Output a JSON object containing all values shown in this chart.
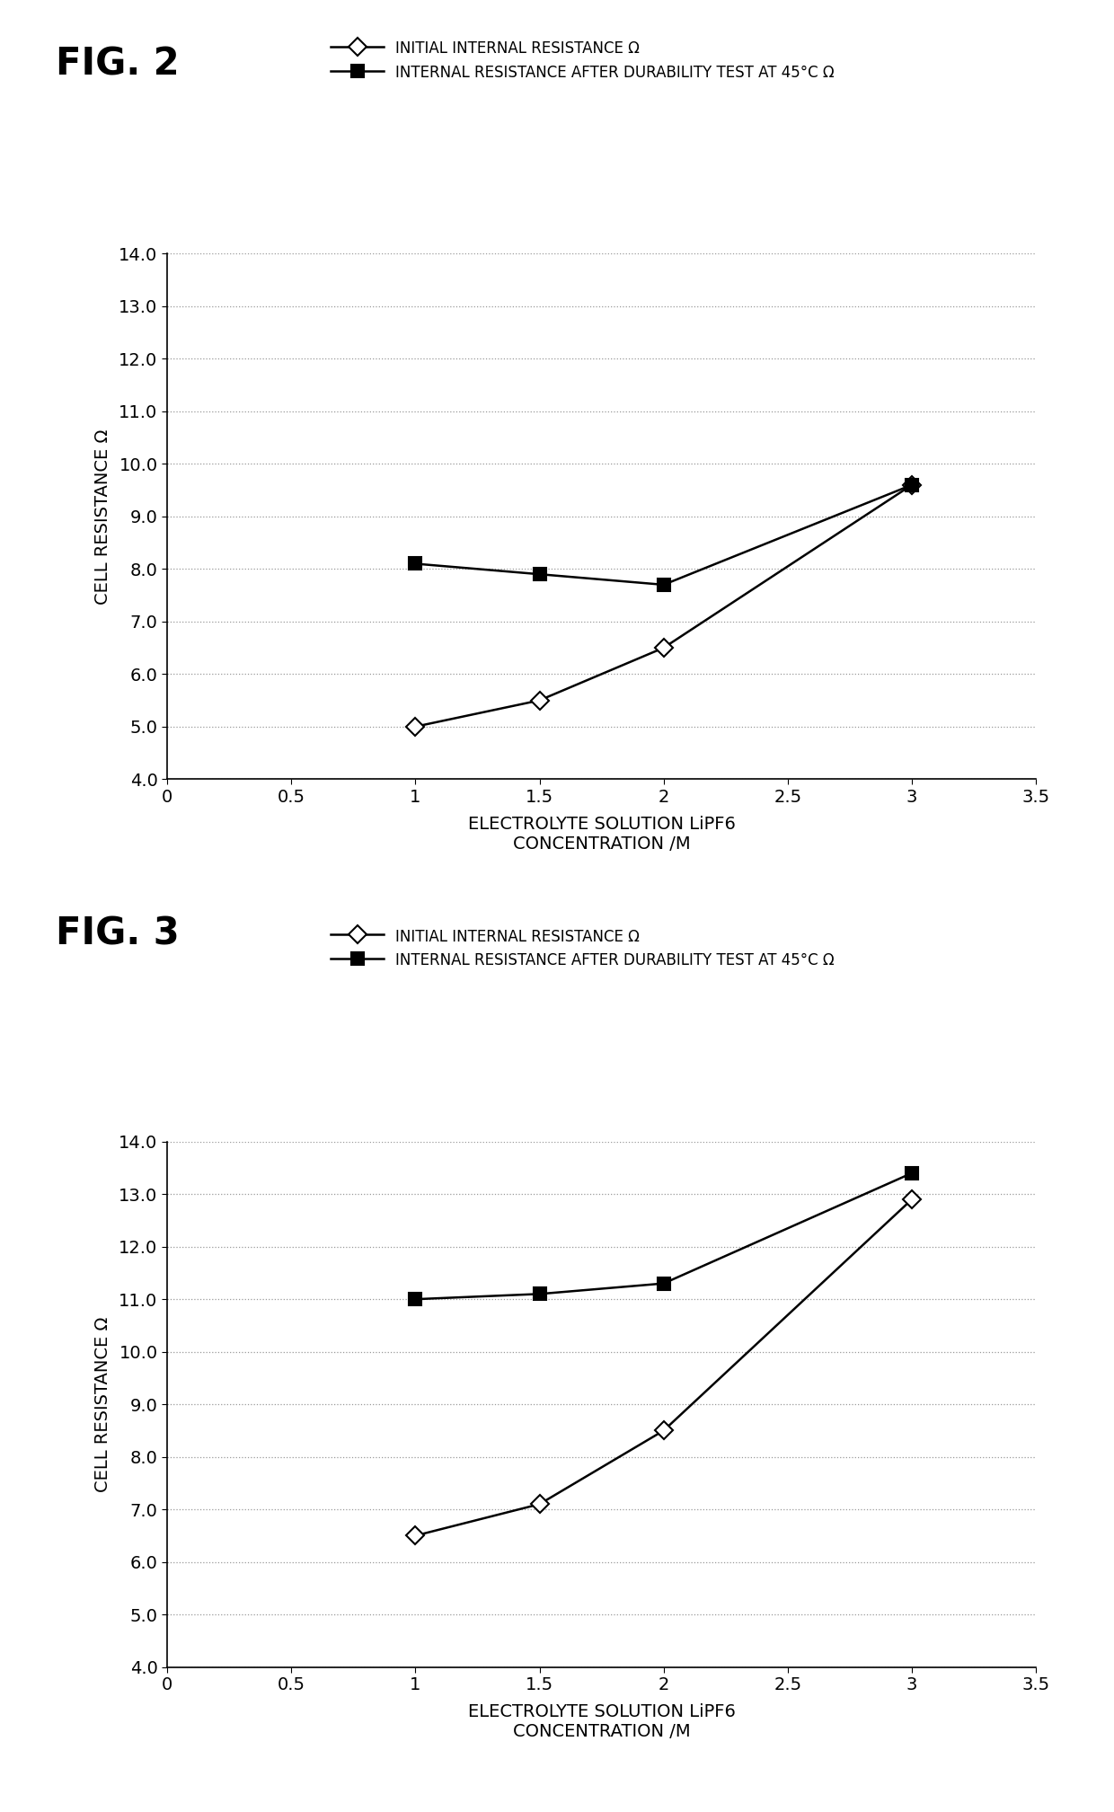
{
  "fig2": {
    "title": "FIG. 2",
    "x": [
      1.0,
      1.5,
      2.0,
      3.0
    ],
    "initial_resistance": [
      5.0,
      5.5,
      6.5,
      9.6
    ],
    "durability_resistance": [
      8.1,
      7.9,
      7.7,
      9.6
    ],
    "legend1": "INITIAL INTERNAL RESISTANCE Ω",
    "legend2": "INTERNAL RESISTANCE AFTER DURABILITY TEST AT 45°C Ω",
    "ylabel": "CELL RESISTANCE Ω",
    "xlabel1": "ELECTROLYTE SOLUTION LiPF6",
    "xlabel2": "CONCENTRATION /M",
    "ylim": [
      4.0,
      14.0
    ],
    "xlim": [
      0,
      3.5
    ],
    "yticks": [
      4.0,
      5.0,
      6.0,
      7.0,
      8.0,
      9.0,
      10.0,
      11.0,
      12.0,
      13.0,
      14.0
    ],
    "xticks": [
      0,
      0.5,
      1.0,
      1.5,
      2.0,
      2.5,
      3.0,
      3.5
    ]
  },
  "fig3": {
    "title": "FIG. 3",
    "x": [
      1.0,
      1.5,
      2.0,
      3.0
    ],
    "initial_resistance": [
      6.5,
      7.1,
      8.5,
      12.9
    ],
    "durability_resistance": [
      11.0,
      11.1,
      11.3,
      13.4
    ],
    "legend1": "INITIAL INTERNAL RESISTANCE Ω",
    "legend2": "INTERNAL RESISTANCE AFTER DURABILITY TEST AT 45°C Ω",
    "ylabel": "CELL RESISTANCE Ω",
    "xlabel1": "ELECTROLYTE SOLUTION LiPF6",
    "xlabel2": "CONCENTRATION /M",
    "ylim": [
      4.0,
      14.0
    ],
    "xlim": [
      0,
      3.5
    ],
    "yticks": [
      4.0,
      5.0,
      6.0,
      7.0,
      8.0,
      9.0,
      10.0,
      11.0,
      12.0,
      13.0,
      14.0
    ],
    "xticks": [
      0,
      0.5,
      1.0,
      1.5,
      2.0,
      2.5,
      3.0,
      3.5
    ]
  },
  "background_color": "#ffffff",
  "line_color": "#000000",
  "grid_color": "#999999",
  "title_fontsize": 30,
  "label_fontsize": 14,
  "legend_fontsize": 12,
  "tick_fontsize": 14
}
